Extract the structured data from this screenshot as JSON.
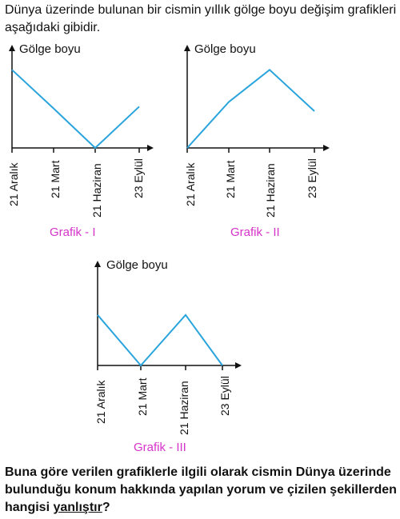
{
  "intro": "Dünya üzerinde bulunan bir cismin yıllık gölge boyu değişim grafikleri aşağıdaki gibidir.",
  "question": {
    "text_before": "Buna göre verilen grafiklerle ilgili olarak cismin Dünya üzerinde bulunduğu konum hakkında yapılan yorum ve çizilen şekillerden hangisi ",
    "underlined": "yanlıştır",
    "text_after": "?"
  },
  "colors": {
    "line": "#2aa4dc",
    "caption": "#d633c9",
    "axis": "#111111"
  },
  "chart_data": [
    {
      "type": "line",
      "caption": "Grafik - I",
      "ylabel": "Gölge boyu",
      "categories": [
        "21 Aralık",
        "21 Mart",
        "21 Haziran",
        "23 Eylül"
      ],
      "series": [
        {
          "values": [
            0.85,
            0.43,
            0.0,
            0.45
          ]
        }
      ]
    },
    {
      "type": "line",
      "caption": "Grafik - II",
      "ylabel": "Gölge boyu",
      "categories": [
        "21 Aralık",
        "21 Mart",
        "21 Haziran",
        "23 Eylül"
      ],
      "series": [
        {
          "values": [
            0.0,
            0.5,
            0.85,
            0.4
          ]
        }
      ]
    },
    {
      "type": "line",
      "caption": "Grafik - III",
      "ylabel": "Gölge boyu",
      "categories": [
        "21 Aralık",
        "21 Mart",
        "21 Haziran",
        "23 Eylül"
      ],
      "series": [
        {
          "values": [
            0.55,
            0.0,
            0.55,
            0.0
          ]
        }
      ]
    }
  ]
}
